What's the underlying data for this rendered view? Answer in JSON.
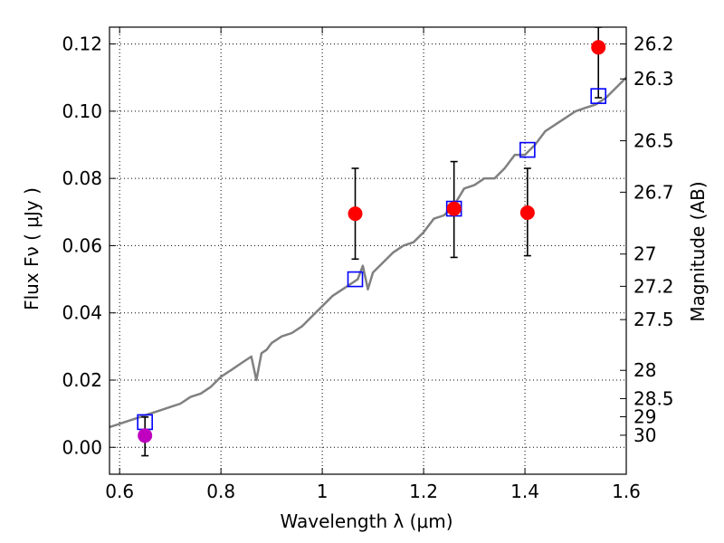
{
  "chart_data": {
    "type": "scatter",
    "title": "",
    "xlabel": "Wavelength  λ (μm)",
    "ylabel": "Flux  Fν  ( μJy )",
    "y2label": "Magnitude (AB)",
    "xlim": [
      0.58,
      1.6
    ],
    "ylim": [
      -0.008,
      0.125
    ],
    "grid": true,
    "x_ticks": [
      {
        "value": 0.6,
        "label": "0.6"
      },
      {
        "value": 0.8,
        "label": "0.8"
      },
      {
        "value": 1.0,
        "label": "1"
      },
      {
        "value": 1.2,
        "label": "1.2"
      },
      {
        "value": 1.4,
        "label": "1.4"
      },
      {
        "value": 1.6,
        "label": "1.6"
      }
    ],
    "y_ticks": [
      {
        "value": 0.0,
        "label": "0.00"
      },
      {
        "value": 0.02,
        "label": "0.02"
      },
      {
        "value": 0.04,
        "label": "0.04"
      },
      {
        "value": 0.06,
        "label": "0.06"
      },
      {
        "value": 0.08,
        "label": "0.08"
      },
      {
        "value": 0.1,
        "label": "0.10"
      },
      {
        "value": 0.12,
        "label": "0.12"
      }
    ],
    "mag_ticks": [
      {
        "flux": 0.12,
        "label": "26.2"
      },
      {
        "flux": 0.1096,
        "label": "26.3"
      },
      {
        "flux": 0.0912,
        "label": "26.5"
      },
      {
        "flux": 0.0759,
        "label": "26.7"
      },
      {
        "flux": 0.0575,
        "label": "27"
      },
      {
        "flux": 0.0479,
        "label": "27.2"
      },
      {
        "flux": 0.038,
        "label": "27.5"
      },
      {
        "flux": 0.0229,
        "label": "28"
      },
      {
        "flux": 0.0145,
        "label": "28.5"
      },
      {
        "flux": 0.0091,
        "label": "29"
      },
      {
        "flux": 0.0036,
        "label": "30"
      }
    ],
    "series": [
      {
        "kind": "line",
        "color": "#808080",
        "x": [
          0.58,
          0.6,
          0.62,
          0.64,
          0.66,
          0.68,
          0.7,
          0.72,
          0.74,
          0.76,
          0.78,
          0.8,
          0.82,
          0.84,
          0.86,
          0.87,
          0.88,
          0.89,
          0.9,
          0.92,
          0.94,
          0.96,
          0.98,
          1.0,
          1.02,
          1.04,
          1.05,
          1.06,
          1.07,
          1.08,
          1.09,
          1.1,
          1.12,
          1.14,
          1.16,
          1.18,
          1.2,
          1.22,
          1.24,
          1.26,
          1.28,
          1.3,
          1.32,
          1.34,
          1.36,
          1.38,
          1.4,
          1.42,
          1.44,
          1.46,
          1.48,
          1.5,
          1.52,
          1.54,
          1.56,
          1.58,
          1.6
        ],
        "y": [
          0.006,
          0.007,
          0.008,
          0.009,
          0.01,
          0.011,
          0.012,
          0.013,
          0.015,
          0.016,
          0.018,
          0.021,
          0.023,
          0.025,
          0.027,
          0.02,
          0.028,
          0.029,
          0.031,
          0.033,
          0.034,
          0.036,
          0.039,
          0.042,
          0.045,
          0.047,
          0.048,
          0.049,
          0.05,
          0.054,
          0.047,
          0.052,
          0.055,
          0.058,
          0.06,
          0.061,
          0.064,
          0.068,
          0.069,
          0.072,
          0.077,
          0.078,
          0.08,
          0.08,
          0.083,
          0.087,
          0.087,
          0.09,
          0.094,
          0.096,
          0.098,
          0.1,
          0.101,
          0.102,
          0.104,
          0.107,
          0.11
        ]
      },
      {
        "kind": "points",
        "marker": "open-square",
        "color": "#0000ff",
        "x": [
          0.65,
          1.065,
          1.26,
          1.405,
          1.545
        ],
        "y": [
          0.0075,
          0.05,
          0.071,
          0.0885,
          0.1045
        ]
      },
      {
        "kind": "points",
        "marker": "filled-circle",
        "color": "#ff0000",
        "x": [
          1.065,
          1.26,
          1.405,
          1.545
        ],
        "y": [
          0.0695,
          0.071,
          0.0698,
          0.119
        ],
        "yerr_low": [
          0.056,
          0.0565,
          0.057,
          0.104
        ],
        "yerr_high": [
          0.083,
          0.085,
          0.083,
          0.125
        ]
      },
      {
        "kind": "points",
        "marker": "filled-circle",
        "color": "#bf00bf",
        "x": [
          0.65
        ],
        "y": [
          0.0035
        ],
        "yerr_low": [
          -0.0025
        ],
        "yerr_high": [
          0.009
        ]
      }
    ]
  }
}
